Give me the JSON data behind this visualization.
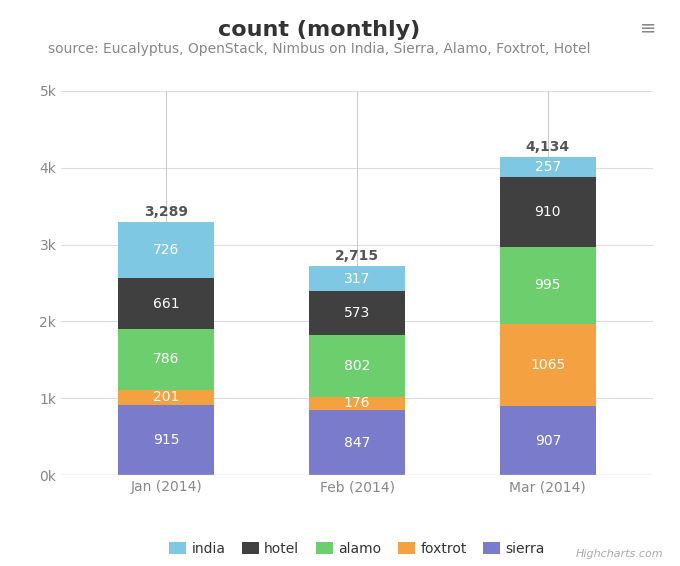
{
  "title": "count (monthly)",
  "subtitle": "source: Eucalyptus, OpenStack, Nimbus on India, Sierra, Alamo, Foxtrot, Hotel",
  "categories": [
    "Jan (2014)",
    "Feb (2014)",
    "Mar (2014)"
  ],
  "series": [
    {
      "name": "sierra",
      "color": "#7b7bcc",
      "values": [
        915,
        847,
        907
      ]
    },
    {
      "name": "foxtrot",
      "color": "#f4a142",
      "values": [
        201,
        176,
        1065
      ]
    },
    {
      "name": "alamo",
      "color": "#6dce6d",
      "values": [
        786,
        802,
        995
      ]
    },
    {
      "name": "hotel",
      "color": "#404040",
      "values": [
        661,
        573,
        910
      ]
    },
    {
      "name": "india",
      "color": "#7ec8e3",
      "values": [
        726,
        317,
        257
      ]
    }
  ],
  "legend_order": [
    "india",
    "hotel",
    "alamo",
    "foxtrot",
    "sierra"
  ],
  "totals": [
    3289,
    2715,
    4134
  ],
  "ylim": [
    0,
    5000
  ],
  "yticks": [
    0,
    1000,
    2000,
    3000,
    4000,
    5000
  ],
  "ytick_labels": [
    "0k",
    "1k",
    "2k",
    "3k",
    "4k",
    "5k"
  ],
  "bg_color": "#ffffff",
  "plot_bg_color": "#ffffff",
  "grid_color": "#dddddd",
  "title_fontsize": 16,
  "subtitle_fontsize": 10,
  "label_fontsize": 10,
  "legend_fontsize": 10,
  "bar_width": 0.5,
  "highcharts_text": "Highcharts.com"
}
